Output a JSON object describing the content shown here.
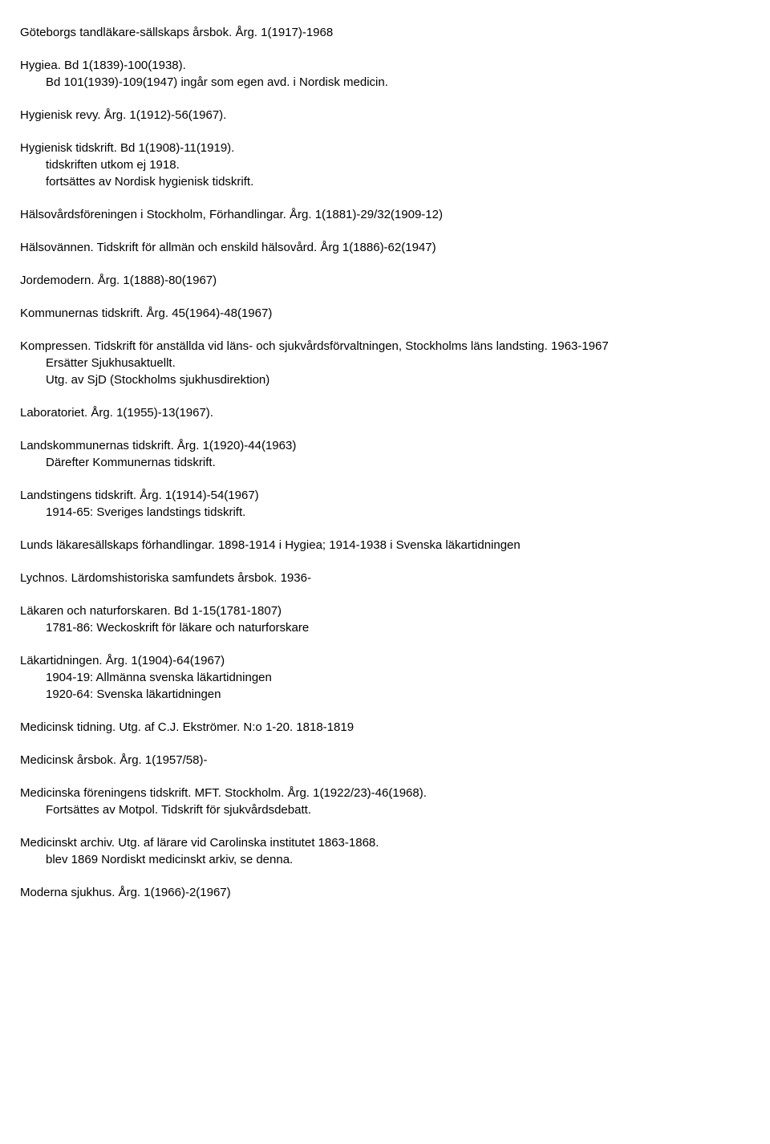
{
  "entries": [
    {
      "title": "Göteborgs tandläkare-sällskaps årsbok. Årg. 1(1917)-1968",
      "notes": []
    },
    {
      "title": "Hygiea. Bd 1(1839)-100(1938).",
      "notes": [
        "Bd 101(1939)-109(1947) ingår som egen avd. i Nordisk medicin."
      ]
    },
    {
      "title": "Hygienisk revy. Årg. 1(1912)-56(1967).",
      "notes": []
    },
    {
      "title": "Hygienisk tidskrift. Bd 1(1908)-11(1919).",
      "notes": [
        "tidskriften utkom ej 1918.",
        "fortsättes av Nordisk hygienisk tidskrift."
      ]
    },
    {
      "title": "Hälsovårdsföreningen i Stockholm, Förhandlingar. Årg. 1(1881)-29/32(1909-12)",
      "notes": []
    },
    {
      "title": "Hälsovännen. Tidskrift för allmän och enskild hälsovård. Årg 1(1886)-62(1947)",
      "notes": []
    },
    {
      "title": "Jordemodern. Årg. 1(1888)-80(1967)",
      "notes": []
    },
    {
      "title": "Kommunernas tidskrift. Årg. 45(1964)-48(1967)",
      "notes": []
    },
    {
      "title": "Kompressen. Tidskrift för anställda vid läns- och sjukvårdsförvaltningen, Stockholms läns landsting. 1963-1967",
      "notes": [
        "Ersätter Sjukhusaktuellt.",
        "Utg. av SjD (Stockholms sjukhusdirektion)"
      ]
    },
    {
      "title": "Laboratoriet. Årg. 1(1955)-13(1967).",
      "notes": []
    },
    {
      "title": "Landskommunernas tidskrift. Årg. 1(1920)-44(1963)",
      "notes": [
        "Därefter Kommunernas tidskrift."
      ]
    },
    {
      "title": "Landstingens tidskrift. Årg. 1(1914)-54(1967)",
      "notes": [
        "1914-65: Sveriges landstings tidskrift."
      ]
    },
    {
      "title": "Lunds läkaresällskaps förhandlingar. 1898-1914 i Hygiea; 1914-1938 i Svenska läkartidningen",
      "notes": []
    },
    {
      "title": "Lychnos. Lärdomshistoriska samfundets årsbok. 1936-",
      "notes": []
    },
    {
      "title": "Läkaren och naturforskaren. Bd 1-15(1781-1807)",
      "notes": [
        "1781-86: Weckoskrift för läkare och naturforskare"
      ]
    },
    {
      "title": "Läkartidningen. Årg. 1(1904)-64(1967)",
      "notes": [
        "1904-19: Allmänna svenska läkartidningen",
        "1920-64: Svenska läkartidningen"
      ]
    },
    {
      "title": "Medicinsk tidning. Utg. af C.J. Ekströmer. N:o 1-20. 1818-1819",
      "notes": []
    },
    {
      "title": "Medicinsk årsbok. Årg. 1(1957/58)-",
      "notes": []
    },
    {
      "title": "Medicinska föreningens tidskrift. MFT. Stockholm. Årg. 1(1922/23)-46(1968).",
      "notes": [
        "Fortsättes av Motpol. Tidskrift för sjukvårdsdebatt."
      ]
    },
    {
      "title": "Medicinskt archiv. Utg. af lärare vid Carolinska institutet 1863-1868.",
      "notes": [
        "blev 1869 Nordiskt medicinskt arkiv, se denna."
      ]
    },
    {
      "title": "Moderna sjukhus. Årg. 1(1966)-2(1967)",
      "notes": []
    }
  ],
  "specialHanging": {
    "12": true
  }
}
